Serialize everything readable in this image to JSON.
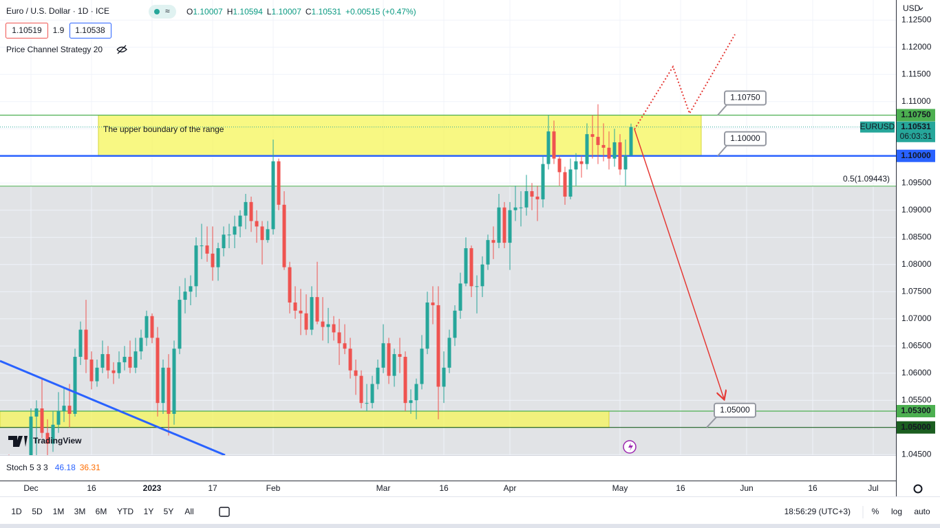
{
  "header": {
    "symbol": "Euro / U.S. Dollar · 1D · ICE",
    "ohlc": [
      [
        "O",
        "1.10007"
      ],
      [
        "H",
        "1.10594"
      ],
      [
        "L",
        "1.10007"
      ],
      [
        "C",
        "1.10531"
      ]
    ],
    "change": "+0.00515 (+0.47%)",
    "bid": "1.10519",
    "spread": "1.9",
    "ask": "1.10538",
    "indicator": "Price Channel Strategy 20"
  },
  "chart_data": {
    "type": "candlestick",
    "currency": "USD",
    "up_color": "#26a69a",
    "down_color": "#ef5350",
    "grid": true,
    "categories": [
      null,
      null,
      null,
      null,
      null,
      "Dec",
      null,
      null,
      null,
      null,
      null,
      null,
      null,
      null,
      null,
      null,
      "16",
      null,
      null,
      null,
      null,
      null,
      null,
      null,
      null,
      null,
      null,
      "2023",
      null,
      null,
      null,
      null,
      null,
      null,
      null,
      null,
      null,
      null,
      "17",
      null,
      null,
      null,
      null,
      null,
      null,
      null,
      null,
      null,
      null,
      "Feb",
      null,
      null,
      null,
      null,
      null,
      null,
      null,
      null,
      null,
      null,
      null,
      null,
      null,
      null,
      null,
      null,
      null,
      null,
      null,
      "Mar",
      null,
      null,
      null,
      null,
      null,
      null,
      null,
      null,
      null,
      null,
      "16",
      null,
      null,
      null,
      null,
      null,
      null,
      null,
      null,
      null,
      null,
      null,
      "Apr",
      null,
      null,
      null,
      null,
      null,
      null,
      null,
      null,
      null,
      null,
      null,
      null,
      null,
      null,
      null,
      null,
      null,
      null,
      null,
      "May",
      null,
      null,
      null,
      null,
      null,
      null,
      null,
      null,
      null,
      null,
      "16",
      null,
      null,
      null,
      null,
      null,
      null,
      null,
      null,
      null,
      null,
      null,
      "Jun",
      null,
      null,
      null,
      null,
      null,
      null,
      null,
      null,
      null,
      null,
      null,
      "16",
      null,
      null,
      null,
      null,
      null,
      null,
      null,
      null,
      null,
      null,
      "Jul",
      null,
      null,
      null
    ],
    "candles": [
      [
        1.038,
        1.0425,
        1.036,
        1.0405
      ],
      [
        1.0405,
        1.045,
        1.0385,
        1.0398
      ],
      [
        1.0398,
        1.0405,
        1.032,
        1.0335
      ],
      [
        1.0335,
        1.037,
        1.03,
        1.033
      ],
      [
        1.033,
        1.042,
        1.031,
        1.0405
      ],
      [
        1.0405,
        1.0535,
        1.04,
        1.052
      ],
      [
        1.052,
        1.055,
        1.043,
        1.0535
      ],
      [
        1.0535,
        1.059,
        1.048,
        1.049
      ],
      [
        1.049,
        1.0515,
        1.0445,
        1.047
      ],
      [
        1.047,
        1.053,
        1.0455,
        1.0505
      ],
      [
        1.0505,
        1.0565,
        1.049,
        1.053
      ],
      [
        1.053,
        1.0575,
        1.051,
        1.054
      ],
      [
        1.054,
        1.058,
        1.05,
        1.0525
      ],
      [
        1.0525,
        1.0645,
        1.052,
        1.063
      ],
      [
        1.063,
        1.0695,
        1.0615,
        1.068
      ],
      [
        1.068,
        1.0735,
        1.06,
        1.0625
      ],
      [
        1.0625,
        1.064,
        1.057,
        1.0585
      ],
      [
        1.0585,
        1.0625,
        1.0575,
        1.061
      ],
      [
        1.061,
        1.066,
        1.06,
        1.0635
      ],
      [
        1.0635,
        1.065,
        1.059,
        1.0605
      ],
      [
        1.0605,
        1.062,
        1.058,
        1.06
      ],
      [
        1.06,
        1.064,
        1.059,
        1.062
      ],
      [
        1.062,
        1.065,
        1.0605,
        1.063
      ],
      [
        1.063,
        1.066,
        1.06,
        1.061
      ],
      [
        1.061,
        1.0665,
        1.06,
        1.064
      ],
      [
        1.064,
        1.068,
        1.0625,
        1.0665
      ],
      [
        1.0665,
        1.0715,
        1.065,
        1.0705
      ],
      [
        1.0705,
        1.071,
        1.0655,
        1.0665
      ],
      [
        1.0665,
        1.0685,
        1.052,
        1.0545
      ],
      [
        1.0545,
        1.0625,
        1.0525,
        1.061
      ],
      [
        1.061,
        1.0635,
        1.0485,
        1.0525
      ],
      [
        1.0525,
        1.066,
        1.0505,
        1.0645
      ],
      [
        1.0645,
        1.076,
        1.0635,
        1.0735
      ],
      [
        1.0735,
        1.0775,
        1.071,
        1.075
      ],
      [
        1.075,
        1.078,
        1.0725,
        1.076
      ],
      [
        1.076,
        1.085,
        1.074,
        1.0835
      ],
      [
        1.0835,
        1.0875,
        1.081,
        1.0835
      ],
      [
        1.0835,
        1.087,
        1.0805,
        1.082
      ],
      [
        1.082,
        1.087,
        1.077,
        1.0795
      ],
      [
        1.0795,
        1.084,
        1.077,
        1.083
      ],
      [
        1.083,
        1.087,
        1.0815,
        1.0855
      ],
      [
        1.0855,
        1.0875,
        1.083,
        1.0855
      ],
      [
        1.0855,
        1.089,
        1.083,
        1.087
      ],
      [
        1.087,
        1.09,
        1.085,
        1.089
      ],
      [
        1.089,
        1.093,
        1.0865,
        1.0915
      ],
      [
        1.0915,
        1.0925,
        1.086,
        1.088
      ],
      [
        1.088,
        1.09,
        1.084,
        1.087
      ],
      [
        1.087,
        1.088,
        1.08,
        1.0845
      ],
      [
        1.0845,
        1.088,
        1.084,
        1.0865
      ],
      [
        1.0865,
        1.103,
        1.0855,
        1.099
      ],
      [
        1.099,
        1.0995,
        1.09,
        1.091
      ],
      [
        1.091,
        1.0935,
        1.079,
        1.0795
      ],
      [
        1.0795,
        1.0805,
        1.071,
        1.073
      ],
      [
        1.073,
        1.076,
        1.07,
        1.0715
      ],
      [
        1.0715,
        1.0755,
        1.067,
        1.071
      ],
      [
        1.071,
        1.0745,
        1.067,
        1.068
      ],
      [
        1.068,
        1.076,
        1.067,
        1.074
      ],
      [
        1.074,
        1.0805,
        1.069,
        1.0695
      ],
      [
        1.0695,
        1.074,
        1.066,
        1.0685
      ],
      [
        1.0685,
        1.072,
        1.0655,
        1.069
      ],
      [
        1.069,
        1.0705,
        1.066,
        1.0675
      ],
      [
        1.0675,
        1.07,
        1.0615,
        1.0655
      ],
      [
        1.0655,
        1.069,
        1.0635,
        1.0645
      ],
      [
        1.0645,
        1.0665,
        1.059,
        1.0605
      ],
      [
        1.0605,
        1.0625,
        1.056,
        1.0595
      ],
      [
        1.0595,
        1.0605,
        1.0535,
        1.0545
      ],
      [
        1.0545,
        1.058,
        1.053,
        1.0545
      ],
      [
        1.0545,
        1.0595,
        1.0535,
        1.058
      ],
      [
        1.058,
        1.0625,
        1.057,
        1.061
      ],
      [
        1.061,
        1.069,
        1.06,
        1.0655
      ],
      [
        1.0655,
        1.0665,
        1.058,
        1.0595
      ],
      [
        1.0595,
        1.0645,
        1.0575,
        1.0635
      ],
      [
        1.0635,
        1.0665,
        1.06,
        1.063
      ],
      [
        1.063,
        1.064,
        1.053,
        1.0545
      ],
      [
        1.0545,
        1.057,
        1.0525,
        1.055
      ],
      [
        1.055,
        1.059,
        1.0515,
        1.058
      ],
      [
        1.058,
        1.067,
        1.057,
        1.0645
      ],
      [
        1.0645,
        1.075,
        1.0635,
        1.073
      ],
      [
        1.073,
        1.076,
        1.069,
        1.0725
      ],
      [
        1.0725,
        1.076,
        1.0515,
        1.0575
      ],
      [
        1.0575,
        1.064,
        1.0545,
        1.061
      ],
      [
        1.061,
        1.068,
        1.06,
        1.0665
      ],
      [
        1.0665,
        1.0725,
        1.065,
        1.0715
      ],
      [
        1.0715,
        1.0785,
        1.07,
        1.0765
      ],
      [
        1.0765,
        1.085,
        1.076,
        1.083
      ],
      [
        1.083,
        1.0835,
        1.074,
        1.076
      ],
      [
        1.076,
        1.078,
        1.071,
        1.076
      ],
      [
        1.076,
        1.0815,
        1.074,
        1.08
      ],
      [
        1.08,
        1.0855,
        1.079,
        1.0845
      ],
      [
        1.0845,
        1.087,
        1.081,
        1.084
      ],
      [
        1.084,
        1.093,
        1.083,
        1.0905
      ],
      [
        1.0905,
        1.0915,
        1.083,
        1.084
      ],
      [
        1.084,
        1.0915,
        1.079,
        1.09
      ],
      [
        1.09,
        1.0945,
        1.088,
        1.0905
      ],
      [
        1.0905,
        1.0935,
        1.087,
        1.0905
      ],
      [
        1.0905,
        1.0965,
        1.089,
        1.0935
      ],
      [
        1.0935,
        1.095,
        1.09,
        1.0925
      ],
      [
        1.0925,
        1.0945,
        1.088,
        1.092
      ],
      [
        1.092,
        1.1,
        1.0905,
        1.0985
      ],
      [
        1.0985,
        1.1075,
        1.0975,
        1.1045
      ],
      [
        1.1045,
        1.1065,
        1.0985,
        1.0995
      ],
      [
        1.0995,
        1.1,
        1.0945,
        1.097
      ],
      [
        1.097,
        1.098,
        1.091,
        1.0925
      ],
      [
        1.0925,
        1.0995,
        1.092,
        1.0975
      ],
      [
        1.0975,
        1.1005,
        1.0945,
        1.099
      ],
      [
        1.099,
        1.1,
        1.096,
        1.0985
      ],
      [
        1.0985,
        1.106,
        1.0975,
        1.104
      ],
      [
        1.104,
        1.1075,
        1.0995,
        1.1035
      ],
      [
        1.1035,
        1.1095,
        1.0985,
        1.102
      ],
      [
        1.102,
        1.106,
        1.099,
        1.1015
      ],
      [
        1.1015,
        1.1045,
        1.0975,
        1.0995
      ],
      [
        1.0995,
        1.105,
        1.098,
        1.1025
      ],
      [
        1.1025,
        1.104,
        1.0965,
        1.0975
      ],
      [
        1.0975,
        1.103,
        1.0945,
        1.1
      ],
      [
        1.10007,
        1.10594,
        1.10007,
        1.10531
      ],
      null,
      null,
      null,
      null,
      null,
      null,
      null,
      null,
      null,
      null,
      null,
      null,
      null,
      null,
      null,
      null,
      null,
      null,
      null,
      null,
      null,
      null,
      null,
      null,
      null,
      null,
      null,
      null,
      null,
      null,
      null,
      null,
      null,
      null,
      null,
      null,
      null,
      null,
      null,
      null,
      null,
      null,
      null,
      null,
      null,
      null,
      null
    ],
    "ylim": [
      1.0449,
      1.1287
    ],
    "yticks": [
      {
        "value": 1.045,
        "label": "1.04500"
      },
      {
        "value": 1.05,
        "label": "1.05000"
      },
      {
        "value": 1.055,
        "label": "1.05500"
      },
      {
        "value": 1.06,
        "label": "1.06000"
      },
      {
        "value": 1.065,
        "label": "1.06500"
      },
      {
        "value": 1.07,
        "label": "1.07000"
      },
      {
        "value": 1.075,
        "label": "1.07500"
      },
      {
        "value": 1.08,
        "label": "1.08000"
      },
      {
        "value": 1.085,
        "label": "1.08500"
      },
      {
        "value": 1.09,
        "label": "1.09000"
      },
      {
        "value": 1.095,
        "label": "1.09500"
      },
      {
        "value": 1.1,
        "label": "1.10000"
      },
      {
        "value": 1.105,
        "label": "1.10500"
      },
      {
        "value": 1.11,
        "label": "1.11000"
      },
      {
        "value": 1.115,
        "label": "1.11500"
      },
      {
        "value": 1.12,
        "label": "1.12000"
      },
      {
        "value": 1.125,
        "label": "1.12500"
      }
    ],
    "levels": [
      {
        "value": 1.1075,
        "label": "1.10750",
        "color": "#4caf50"
      },
      {
        "value": 1.1,
        "label": "1.10000",
        "color": "#2962ff"
      },
      {
        "value": 1.053,
        "label": "1.05300",
        "color": "#4caf50"
      },
      {
        "value": 1.05,
        "label": "1.05000",
        "color": "#1b5e20"
      }
    ],
    "fib": {
      "value": 1.09443,
      "label": "0.5(1.09443)",
      "color": "#4caf50"
    },
    "current": {
      "value": 1.10531,
      "label": "1.10531",
      "symbol": "EURUSD",
      "countdown": "06:03:31",
      "color": "#26a69a"
    },
    "callouts": [
      {
        "value": 1.1075,
        "label": "1.10750"
      },
      {
        "value": 1.1,
        "label": "1.10000"
      },
      {
        "value": 1.05,
        "label": "1.05000"
      }
    ],
    "zones": [
      {
        "from": 1.1,
        "to": 1.1075,
        "label": "The upper boundary of the range",
        "color": "#f5f55a"
      },
      {
        "from": 1.05,
        "to": 1.053,
        "color": "#f5f55a"
      }
    ],
    "stoch": {
      "label": "Stoch 5 3 3",
      "k": 46.18,
      "d": 36.31,
      "k_color": "#2962ff",
      "d_color": "#ff6d00"
    }
  },
  "logo": "TradingView",
  "toolbar": {
    "ranges": [
      "1D",
      "5D",
      "1M",
      "3M",
      "6M",
      "YTD",
      "1Y",
      "5Y",
      "All"
    ],
    "clock": "18:56:29 (UTC+3)",
    "options": [
      "%",
      "log",
      "auto"
    ]
  }
}
